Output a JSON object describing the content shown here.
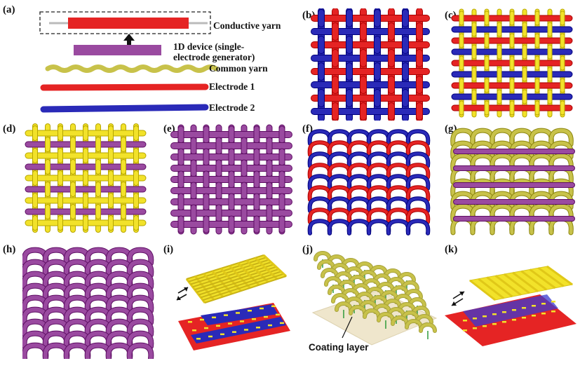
{
  "figure": {
    "panels": [
      "(a)",
      "(b)",
      "(c)",
      "(d)",
      "(e)",
      "(f)",
      "(g)",
      "(h)",
      "(i)",
      "(j)",
      "(k)"
    ],
    "legend": {
      "conductive_yarn": "Conductive yarn",
      "device_line1": "1D device (single-",
      "device_line2": "electrode generator)",
      "common_yarn": "Common yarn",
      "electrode1": "Electrode 1",
      "electrode2": "Electrode 2"
    },
    "coating_label": "Coating layer"
  },
  "colors": {
    "yellow": "#f2e22a",
    "olive": "#c8c24a",
    "red": "#e52424",
    "blue": "#2a2ab8",
    "purple": "#9a4aa0",
    "beige": "#efe6cc"
  }
}
